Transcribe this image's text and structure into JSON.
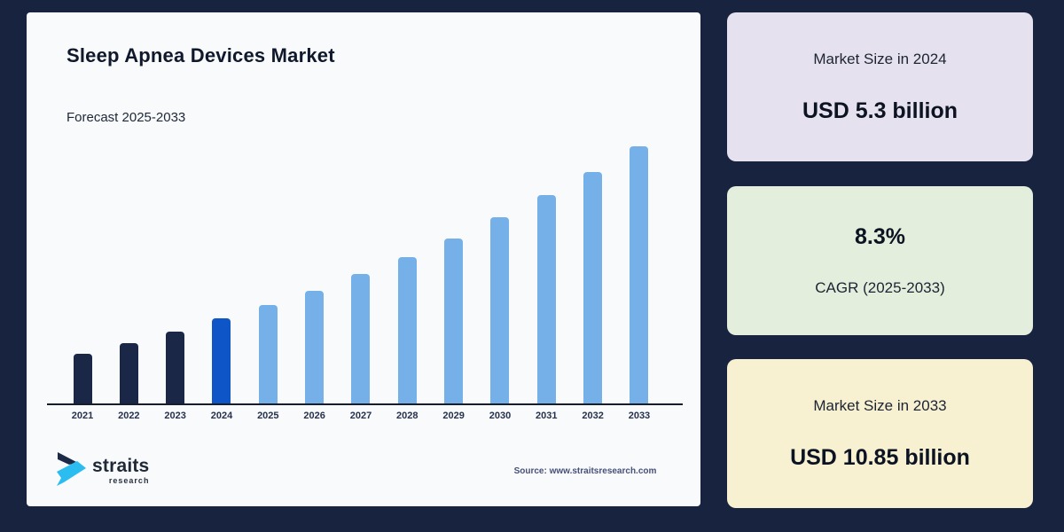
{
  "panel": {
    "title": "Sleep Apnea Devices Market",
    "subtitle": "Forecast 2025-2033",
    "source": "Source: www.straitsresearch.com",
    "logo_text": "straits",
    "logo_subtext": "research"
  },
  "chart_data": {
    "type": "bar",
    "title": "Sleep Apnea Devices Market",
    "subtitle": "Forecast 2025-2033",
    "unit": "USD billion",
    "categories": [
      "2021",
      "2022",
      "2023",
      "2024",
      "2025",
      "2026",
      "2027",
      "2028",
      "2029",
      "2030",
      "2031",
      "2032",
      "2033"
    ],
    "values": [
      4.17,
      4.52,
      4.89,
      5.3,
      5.74,
      6.21,
      6.73,
      7.29,
      7.89,
      8.55,
      9.26,
      10.02,
      10.85
    ],
    "bar_colors": [
      "#1b2746",
      "#1b2746",
      "#1b2746",
      "#0e55c7",
      "#76b0e8",
      "#76b0e8",
      "#76b0e8",
      "#76b0e8",
      "#76b0e8",
      "#76b0e8",
      "#76b0e8",
      "#76b0e8",
      "#76b0e8"
    ],
    "ylim": [
      2.58,
      11.55
    ],
    "xlabel": "",
    "ylabel": "",
    "grid": false,
    "legend": false,
    "data_labels_shown": false
  },
  "cards": [
    {
      "label": "Market Size in 2024",
      "value": "USD 5.3 billion",
      "bg": "#e6e1ee"
    },
    {
      "label": "CAGR (2025-2033)",
      "value": "8.3%",
      "bg": "#e4eedd"
    },
    {
      "label": "Market Size in 2033",
      "value": "USD 10.85 billion",
      "bg": "#f7f0d1"
    }
  ],
  "colors": {
    "page_background": "#18233f",
    "panel_background": "#f8fafc",
    "historical_bar": "#1b2746",
    "base_year_bar": "#0e55c7",
    "forecast_bar": "#76b0e8",
    "axis_line": "#161d2c",
    "logo_cyan": "#2bbdf0",
    "logo_navy": "#1d2a47"
  }
}
